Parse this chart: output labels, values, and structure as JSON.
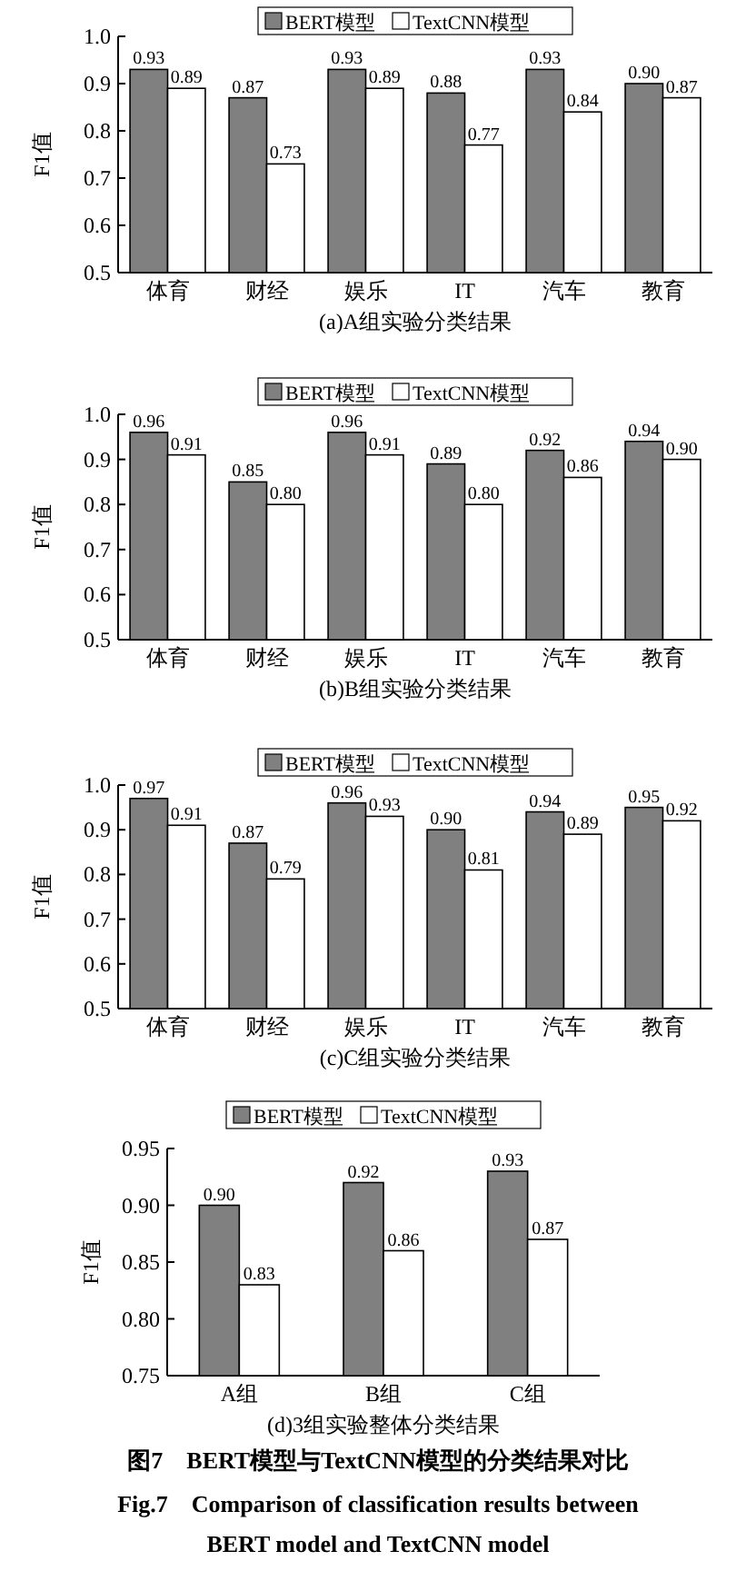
{
  "chart_data": [
    {
      "type": "bar",
      "title": "(a)A组实验分类结果",
      "ylabel": "F1值",
      "categories": [
        "体育",
        "财经",
        "娱乐",
        "IT",
        "汽车",
        "教育"
      ],
      "series": [
        {
          "name": "BERT模型",
          "color": "#808080",
          "values": [
            0.93,
            0.87,
            0.93,
            0.88,
            0.93,
            0.9
          ],
          "value_labels": [
            "0.93",
            "0.87",
            "0.93",
            "0.88",
            "0.93",
            "0.90"
          ]
        },
        {
          "name": "TextCNN模型",
          "color": "#ffffff",
          "values": [
            0.89,
            0.73,
            0.89,
            0.77,
            0.84,
            0.87
          ],
          "value_labels": [
            "0.89",
            "0.73",
            "0.89",
            "0.77",
            "0.84",
            "0.87"
          ]
        }
      ],
      "ylim": [
        0.5,
        1.0
      ],
      "yticks": [
        0.5,
        0.6,
        0.7,
        0.8,
        0.9,
        {
          "value": 1,
          "label": "1.0"
        }
      ],
      "legend": "top"
    },
    {
      "type": "bar",
      "title": "(b)B组实验分类结果",
      "ylabel": "F1值",
      "categories": [
        "体育",
        "财经",
        "娱乐",
        "IT",
        "汽车",
        "教育"
      ],
      "series": [
        {
          "name": "BERT模型",
          "color": "#808080",
          "values": [
            0.96,
            0.85,
            0.96,
            0.89,
            0.92,
            0.94
          ],
          "value_labels": [
            "0.96",
            "0.85",
            "0.96",
            "0.89",
            "0.92",
            "0.94"
          ]
        },
        {
          "name": "TextCNN模型",
          "color": "#ffffff",
          "values": [
            0.91,
            0.8,
            0.91,
            0.8,
            0.86,
            0.9
          ],
          "value_labels": [
            "0.91",
            "0.80",
            "0.91",
            "0.80",
            "0.86",
            "0.90"
          ]
        }
      ],
      "ylim": [
        0.5,
        1.0
      ],
      "yticks": [
        0.5,
        0.6,
        0.7,
        0.8,
        0.9,
        {
          "value": 1,
          "label": "1.0"
        }
      ],
      "legend": "top"
    },
    {
      "type": "bar",
      "title": "(c)C组实验分类结果",
      "ylabel": "F1值",
      "categories": [
        "体育",
        "财经",
        "娱乐",
        "IT",
        "汽车",
        "教育"
      ],
      "series": [
        {
          "name": "BERT模型",
          "color": "#808080",
          "values": [
            0.97,
            0.87,
            0.96,
            0.9,
            0.94,
            0.95
          ],
          "value_labels": [
            "0.97",
            "0.87",
            "0.96",
            "0.90",
            "0.94",
            "0.95"
          ]
        },
        {
          "name": "TextCNN模型",
          "color": "#ffffff",
          "values": [
            0.91,
            0.79,
            0.93,
            0.81,
            0.89,
            0.92
          ],
          "value_labels": [
            "0.91",
            "0.79",
            "0.93",
            "0.81",
            "0.89",
            "0.92"
          ]
        }
      ],
      "ylim": [
        0.5,
        1.0
      ],
      "yticks": [
        0.5,
        0.6,
        0.7,
        0.8,
        0.9,
        {
          "value": 1,
          "label": "1.0"
        }
      ],
      "legend": "top"
    },
    {
      "type": "bar",
      "title": "(d)3组实验整体分类结果",
      "ylabel": "F1值",
      "categories": [
        "A组",
        "B组",
        "C组"
      ],
      "series": [
        {
          "name": "BERT模型",
          "color": "#808080",
          "values": [
            0.9,
            0.92,
            0.93
          ],
          "value_labels": [
            "0.90",
            "0.92",
            "0.93"
          ]
        },
        {
          "name": "TextCNN模型",
          "color": "#ffffff",
          "values": [
            0.83,
            0.86,
            0.87
          ],
          "value_labels": [
            "0.83",
            "0.86",
            "0.87"
          ]
        }
      ],
      "ylim": [
        0.75,
        0.95
      ],
      "yticks": [
        {
          "value": 0.75,
          "label": "0.75"
        },
        {
          "value": 0.8,
          "label": "0.80"
        },
        {
          "value": 0.85,
          "label": "0.85"
        },
        {
          "value": 0.9,
          "label": "0.90"
        },
        {
          "value": 0.95,
          "label": "0.95"
        }
      ],
      "legend": "top",
      "annotations": [
        "图7　BERT模型与TextCNN模型的分类结果对比",
        "Fig.7　Comparison of classification results between BERT model and TextCNN model"
      ]
    }
  ]
}
